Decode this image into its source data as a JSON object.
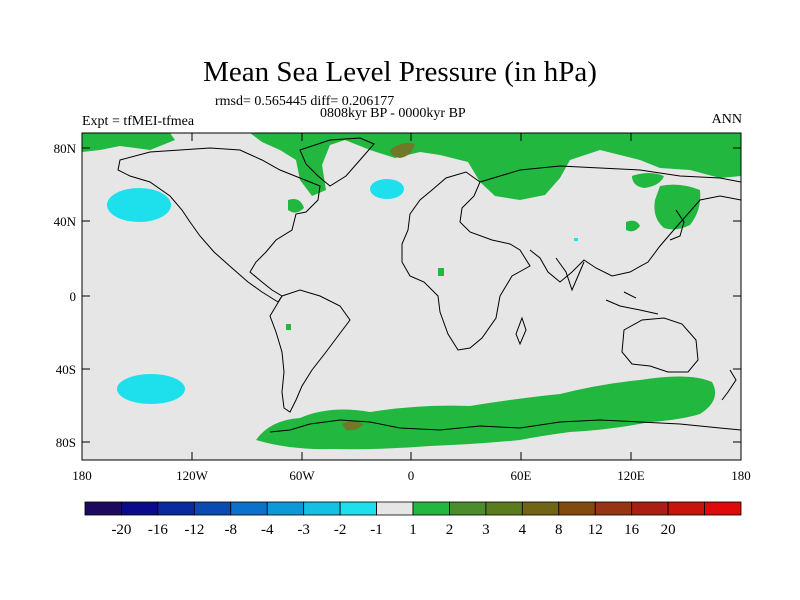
{
  "title": "Mean Sea Level Pressure (in hPa)",
  "stats": "rmsd= 0.565445 diff= 0.206177",
  "period": "0808kyr BP - 0000kyr BP",
  "experiment": "Expt = tfMEI-tfmea",
  "season": "ANN",
  "axes": {
    "lat_ticks": [
      "80N",
      "40N",
      "0",
      "40S",
      "80S"
    ],
    "lon_ticks": [
      "180",
      "120W",
      "60W",
      "0",
      "60E",
      "120E",
      "180"
    ]
  },
  "colorbar": {
    "colors": [
      "#1d0a5e",
      "#0a0a8a",
      "#0a2aa0",
      "#0a4ab4",
      "#0a72cc",
      "#0a9ad8",
      "#14c0e4",
      "#1ee0ec",
      "#e6e6e6",
      "#22b840",
      "#4a8c2e",
      "#5a7c1e",
      "#706416",
      "#824a0c",
      "#963414",
      "#aa1e14",
      "#c8140a",
      "#e00a0a"
    ],
    "labels": [
      "-20",
      "-16",
      "-12",
      "-8",
      "-4",
      "-3",
      "-2",
      "-1",
      "1",
      "2",
      "3",
      "4",
      "8",
      "12",
      "16",
      "20"
    ]
  },
  "map_colors": {
    "background": "#e6e6e6",
    "positive_small": "#22b840",
    "positive_mid": "#6e7a28",
    "negative_small": "#1ee0ec"
  }
}
